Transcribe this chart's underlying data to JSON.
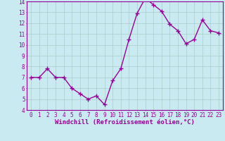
{
  "x": [
    0,
    1,
    2,
    3,
    4,
    5,
    6,
    7,
    8,
    9,
    10,
    11,
    12,
    13,
    14,
    15,
    16,
    17,
    18,
    19,
    20,
    21,
    22,
    23
  ],
  "y": [
    7.0,
    7.0,
    7.8,
    7.0,
    7.0,
    6.0,
    5.5,
    5.0,
    5.3,
    4.5,
    6.7,
    7.8,
    10.5,
    12.9,
    14.3,
    13.7,
    13.1,
    11.9,
    11.3,
    10.1,
    10.5,
    12.3,
    11.3,
    11.1
  ],
  "line_color": "#990099",
  "marker": "+",
  "marker_size": 4,
  "bg_color": "#c8eaf0",
  "grid_color": "#aacccc",
  "xlabel": "Windchill (Refroidissement éolien,°C)",
  "xlabel_color": "#990099",
  "tick_color": "#990099",
  "ylim": [
    4,
    14
  ],
  "xlim": [
    -0.5,
    23.5
  ],
  "yticks": [
    4,
    5,
    6,
    7,
    8,
    9,
    10,
    11,
    12,
    13,
    14
  ],
  "xticks": [
    0,
    1,
    2,
    3,
    4,
    5,
    6,
    7,
    8,
    9,
    10,
    11,
    12,
    13,
    14,
    15,
    16,
    17,
    18,
    19,
    20,
    21,
    22,
    23
  ],
  "tick_fontsize": 5.5,
  "xlabel_fontsize": 6.5,
  "spine_color": "#990099",
  "linewidth": 1.0,
  "marker_linewidth": 1.0
}
